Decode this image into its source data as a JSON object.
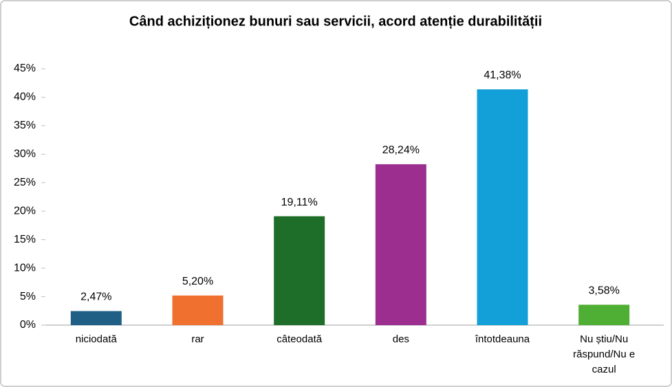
{
  "chart_data": {
    "type": "bar",
    "title": "Când achiziționez bunuri sau servicii, acord atenție durabilității",
    "categories": [
      "niciodată",
      "rar",
      "câteodată",
      "des",
      "întotdeauna",
      "Nu știu/Nu răspund/Nu e cazul"
    ],
    "values": [
      2.47,
      5.2,
      19.11,
      28.24,
      41.38,
      3.58
    ],
    "value_labels": [
      "2,47%",
      "5,20%",
      "19,11%",
      "28,24%",
      "41,38%",
      "3,58%"
    ],
    "colors": [
      "#1f5f86",
      "#f07030",
      "#1e6e2a",
      "#9c2e8f",
      "#139fd8",
      "#4fae34"
    ],
    "ylim": [
      0,
      45
    ],
    "yticks": [
      {
        "value": 0,
        "label": "0%"
      },
      {
        "value": 5,
        "label": "5%"
      },
      {
        "value": 10,
        "label": "10%"
      },
      {
        "value": 15,
        "label": "15%"
      },
      {
        "value": 20,
        "label": "20%"
      },
      {
        "value": 25,
        "label": "25%"
      },
      {
        "value": 30,
        "label": "30%"
      },
      {
        "value": 35,
        "label": "35%"
      },
      {
        "value": 40,
        "label": "40%"
      },
      {
        "value": 45,
        "label": "45%"
      }
    ],
    "grid": false
  }
}
